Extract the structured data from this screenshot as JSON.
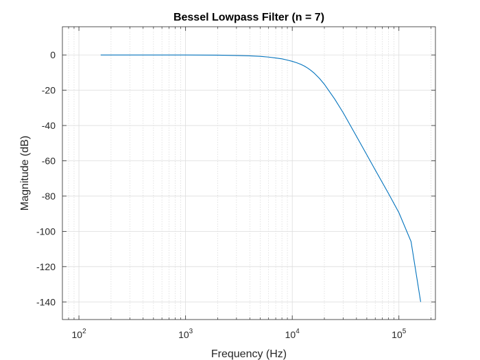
{
  "chart_data": {
    "type": "line",
    "title": "Bessel Lowpass Filter (n = 7)",
    "xlabel": "Frequency (Hz)",
    "ylabel": "Magnitude (dB)",
    "xscale": "log",
    "xlim": [
      70,
      220000
    ],
    "ylim": [
      -150,
      16
    ],
    "grid": {
      "major": true,
      "minor_x": true
    },
    "x_ticks": [
      {
        "value": 100,
        "mantissa": "10",
        "exponent": "2"
      },
      {
        "value": 1000,
        "mantissa": "10",
        "exponent": "3"
      },
      {
        "value": 10000,
        "mantissa": "10",
        "exponent": "4"
      },
      {
        "value": 100000,
        "mantissa": "10",
        "exponent": "5"
      }
    ],
    "y_ticks": [
      {
        "value": 0,
        "label": "0"
      },
      {
        "value": -20,
        "label": "-20"
      },
      {
        "value": -40,
        "label": "-40"
      },
      {
        "value": -60,
        "label": "-60"
      },
      {
        "value": -80,
        "label": "-80"
      },
      {
        "value": -100,
        "label": "-100"
      },
      {
        "value": -120,
        "label": "-120"
      },
      {
        "value": -140,
        "label": "-140"
      }
    ],
    "series": [
      {
        "color": "#0072bd",
        "x": [
          160,
          300,
          600,
          1000,
          2000,
          3000,
          4000,
          5000,
          6000,
          7000,
          8000,
          9000,
          10000,
          11000,
          12000,
          13000,
          14000,
          15000,
          16000,
          18000,
          20000,
          25000,
          30000,
          40000,
          50000,
          60000,
          80000,
          100000,
          130000,
          160000
        ],
        "y": [
          0,
          0,
          0,
          0,
          -0.1,
          -0.3,
          -0.5,
          -0.8,
          -1.2,
          -1.7,
          -2.2,
          -2.9,
          -3.6,
          -4.4,
          -5.3,
          -6.3,
          -7.5,
          -8.8,
          -10.2,
          -13.3,
          -16.6,
          -25.0,
          -32.7,
          -46.1,
          -56.6,
          -65.2,
          -78.6,
          -89.4,
          -105.8,
          -140.0
        ]
      }
    ]
  }
}
